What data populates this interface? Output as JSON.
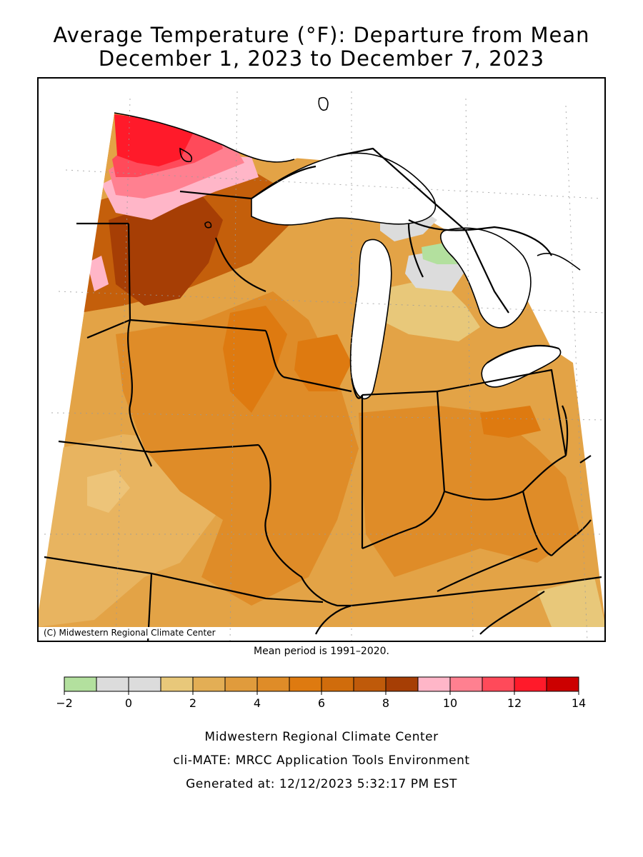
{
  "title_line1": "Average Temperature (°F): Departure from Mean",
  "title_line2": "December 1, 2023 to December 7, 2023",
  "copyright": "(C) Midwestern Regional Climate Center",
  "mean_period": "Mean period is 1991–2020.",
  "legend": {
    "colors": [
      "#b3e09e",
      "#dcdcdc",
      "#dcdcdc",
      "#e8c87a",
      "#e3ae55",
      "#e09b3c",
      "#df8c28",
      "#de7a10",
      "#d06c0c",
      "#bf5a0a",
      "#a63e05",
      "#ffb6c8",
      "#ff8090",
      "#ff4a5a",
      "#ff1a2a",
      "#cc0000"
    ],
    "ticks": [
      -2,
      0,
      2,
      4,
      6,
      8,
      10,
      12,
      14
    ],
    "tick_labels": [
      "−2",
      "0",
      "2",
      "4",
      "6",
      "8",
      "10",
      "12",
      "14"
    ],
    "min": -2,
    "max": 14
  },
  "footer": {
    "line1": "Midwestern Regional Climate Center",
    "line2": "cli-MATE: MRCC Application Tools Environment",
    "line3": "Generated at: 12/12/2023 5:32:17 PM EST"
  }
}
